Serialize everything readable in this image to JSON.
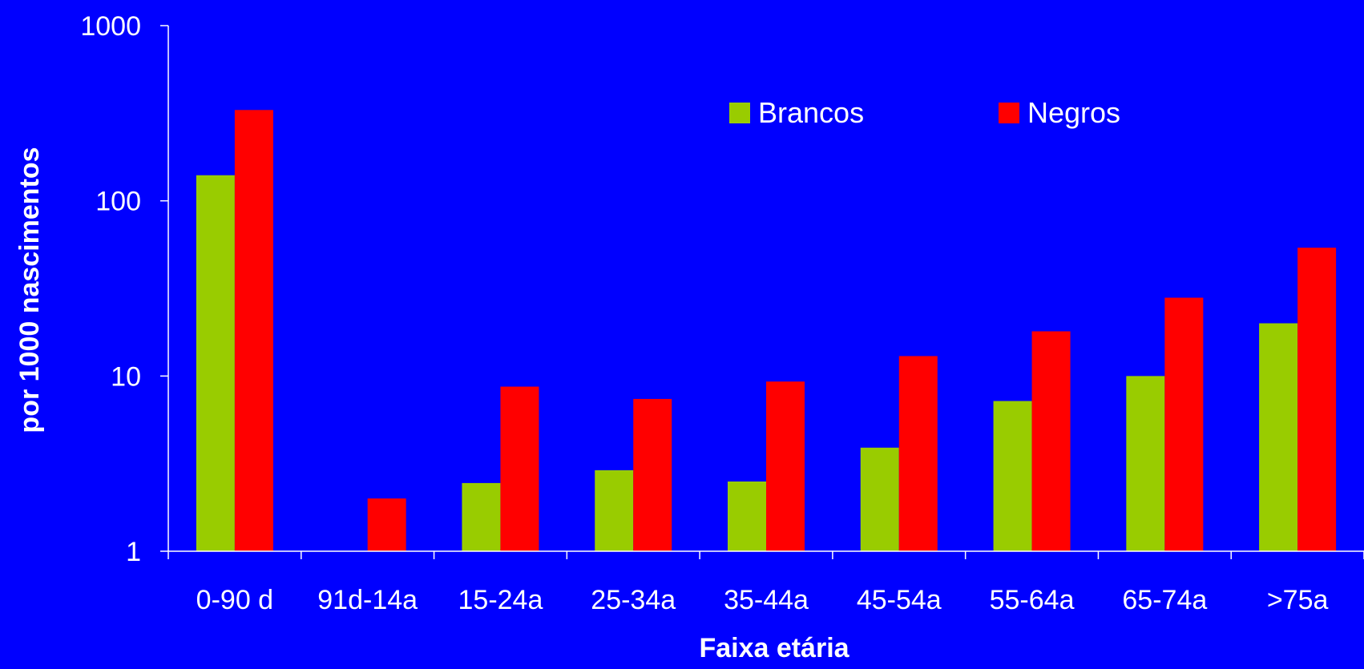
{
  "chart_data": {
    "type": "bar",
    "categories": [
      "0-90 d",
      "91d-14a",
      "15-24a",
      "25-34a",
      "35-44a",
      "45-54a",
      "55-64a",
      "65-74a",
      ">75a"
    ],
    "series": [
      {
        "name": "Brancos",
        "color": "#99CC00",
        "values": [
          140,
          null,
          2.45,
          2.9,
          2.5,
          3.9,
          7.2,
          10,
          20
        ]
      },
      {
        "name": "Negros",
        "color": "#FF0000",
        "values": [
          330,
          2.0,
          8.7,
          7.4,
          9.3,
          13,
          18,
          28,
          54
        ]
      }
    ],
    "xlabel": "Faixa etária",
    "ylabel": "por 1000 nascimentos",
    "y_scale": "log",
    "ylim": [
      1,
      1000
    ],
    "y_ticks": [
      {
        "value": 1,
        "label": "1"
      },
      {
        "value": 10,
        "label": "10"
      },
      {
        "value": 100,
        "label": "100"
      },
      {
        "value": 1000,
        "label": "1000"
      }
    ],
    "legend_position": "top-right",
    "grid": false,
    "background_color": "#0000FF",
    "axis_color": "#FFFFFF"
  }
}
